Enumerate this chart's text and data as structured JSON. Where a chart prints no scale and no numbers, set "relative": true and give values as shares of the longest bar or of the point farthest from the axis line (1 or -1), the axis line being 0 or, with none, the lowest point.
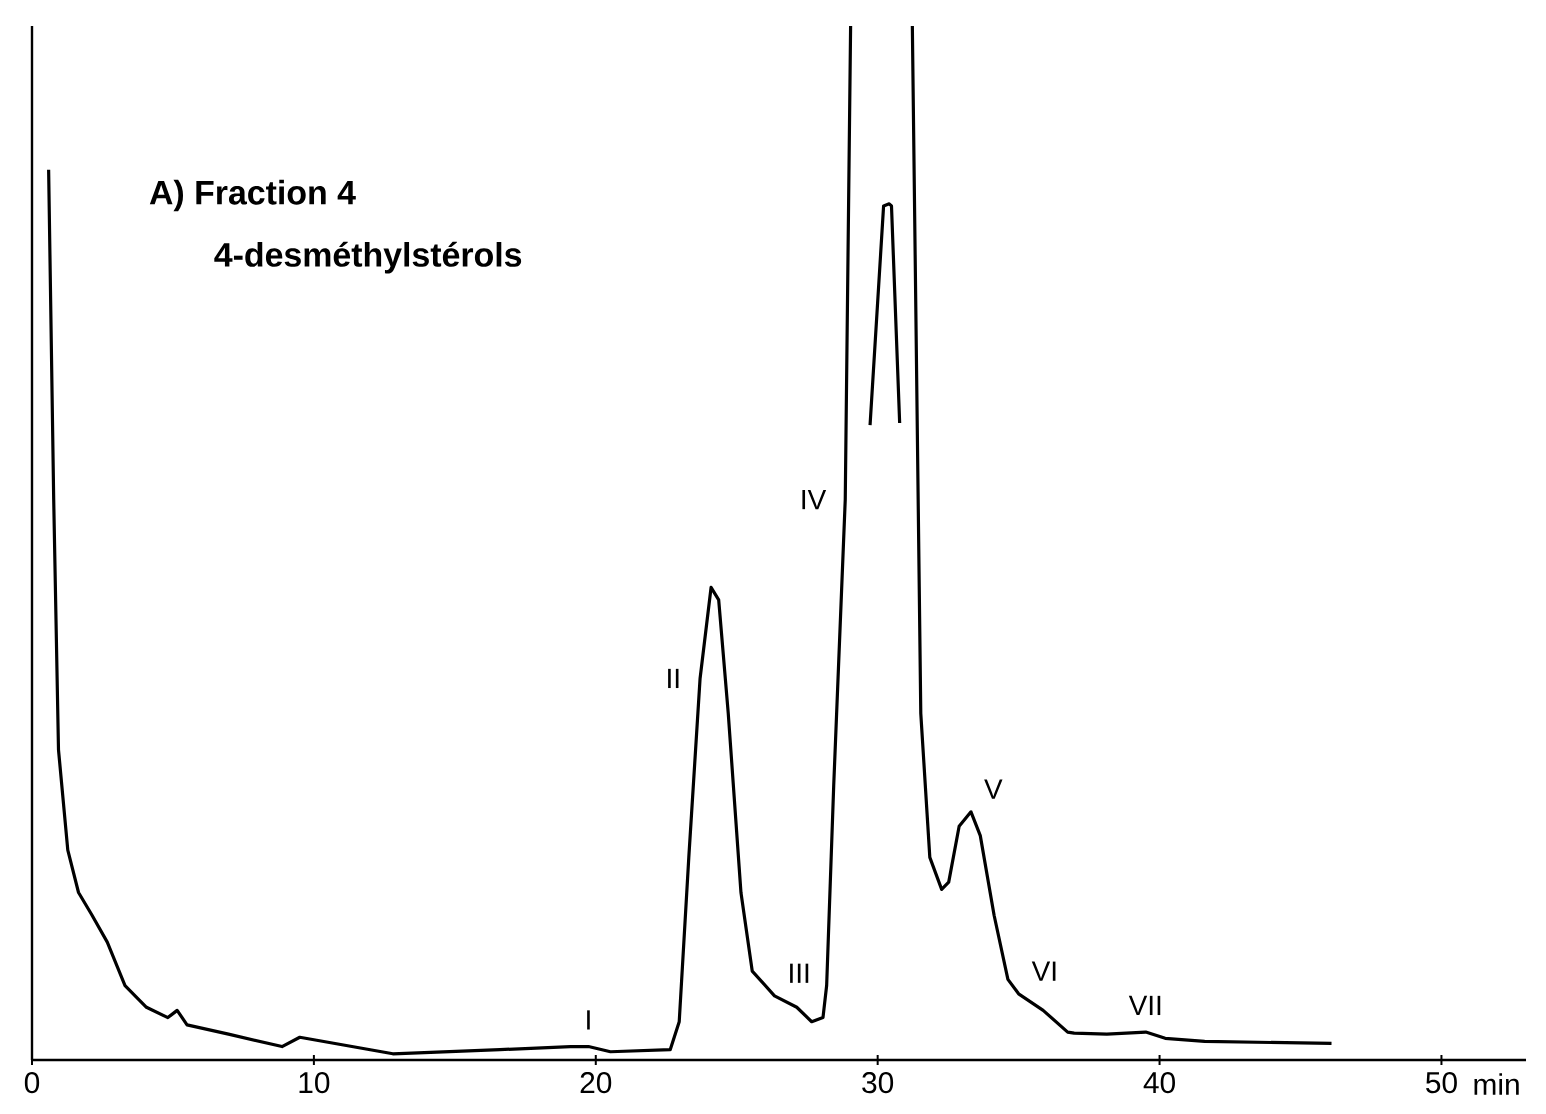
{
  "chart_data": {
    "type": "line",
    "title": "A) Fraction 4",
    "subtitle": "4-desméthylstérols",
    "xlabel": "min",
    "relative": true,
    "xlim": [
      0,
      53
    ],
    "xticks": [
      0,
      10,
      20,
      30,
      40,
      50
    ],
    "annotations": [
      {
        "text": "I",
        "x": 19.74,
        "y": 0.013
      },
      {
        "text": "II",
        "x": 23.7,
        "y": 0.369
      },
      {
        "text": "III",
        "x": 26.34,
        "y": 0.062
      },
      {
        "text": "IV",
        "x": 28.85,
        "y": 0.542
      },
      {
        "text": "V",
        "x": 33.31,
        "y": 0.24
      },
      {
        "text": "VI",
        "x": 35.0,
        "y": 0.064
      },
      {
        "text": "VII",
        "x": 39.51,
        "y": 0.027
      }
    ],
    "series": [
      {
        "color": "#000000",
        "x": [
          0.59,
          0.77,
          0.94,
          1.27,
          1.65,
          2.11,
          2.67,
          3.3,
          4.06,
          4.82,
          5.15,
          5.5,
          6.97,
          8.87,
          9.5,
          12.8,
          16.6,
          19.1,
          19.74,
          20.52,
          22.64,
          22.96,
          23.3,
          23.7,
          24.09,
          24.36,
          24.7,
          25.15,
          25.55,
          26.34,
          27.13,
          27.66,
          28.06,
          28.19,
          28.44,
          28.85,
          29.04,
          30.1,
          31.23,
          31.53,
          31.85,
          32.27,
          32.52,
          32.89,
          33.31,
          33.64,
          34.13,
          34.62,
          35.0,
          35.87,
          36.74,
          36.97,
          38.13,
          39.51,
          40.2,
          41.6,
          46.1
        ],
        "values": [
          0.861,
          0.542,
          0.3,
          0.203,
          0.162,
          0.141,
          0.114,
          0.072,
          0.051,
          0.041,
          0.048,
          0.034,
          0.025,
          0.013,
          0.022,
          0.006,
          0.01,
          0.013,
          0.013,
          0.008,
          0.01,
          0.037,
          0.196,
          0.369,
          0.457,
          0.445,
          0.335,
          0.162,
          0.086,
          0.062,
          0.051,
          0.037,
          0.041,
          0.072,
          0.265,
          0.542,
          1,
          null,
          1,
          0.335,
          0.196,
          0.165,
          0.172,
          0.226,
          0.24,
          0.217,
          0.14,
          0.078,
          0.064,
          0.048,
          0.027,
          0.026,
          0.025,
          0.027,
          0.021,
          0.018,
          0.016
        ]
      },
      {
        "color": "#000000",
        "x": [
          29.73,
          30.21,
          30.41,
          30.49,
          30.78
        ],
        "values": [
          0.614,
          0.826,
          0.828,
          0.826,
          0.616
        ]
      }
    ]
  }
}
